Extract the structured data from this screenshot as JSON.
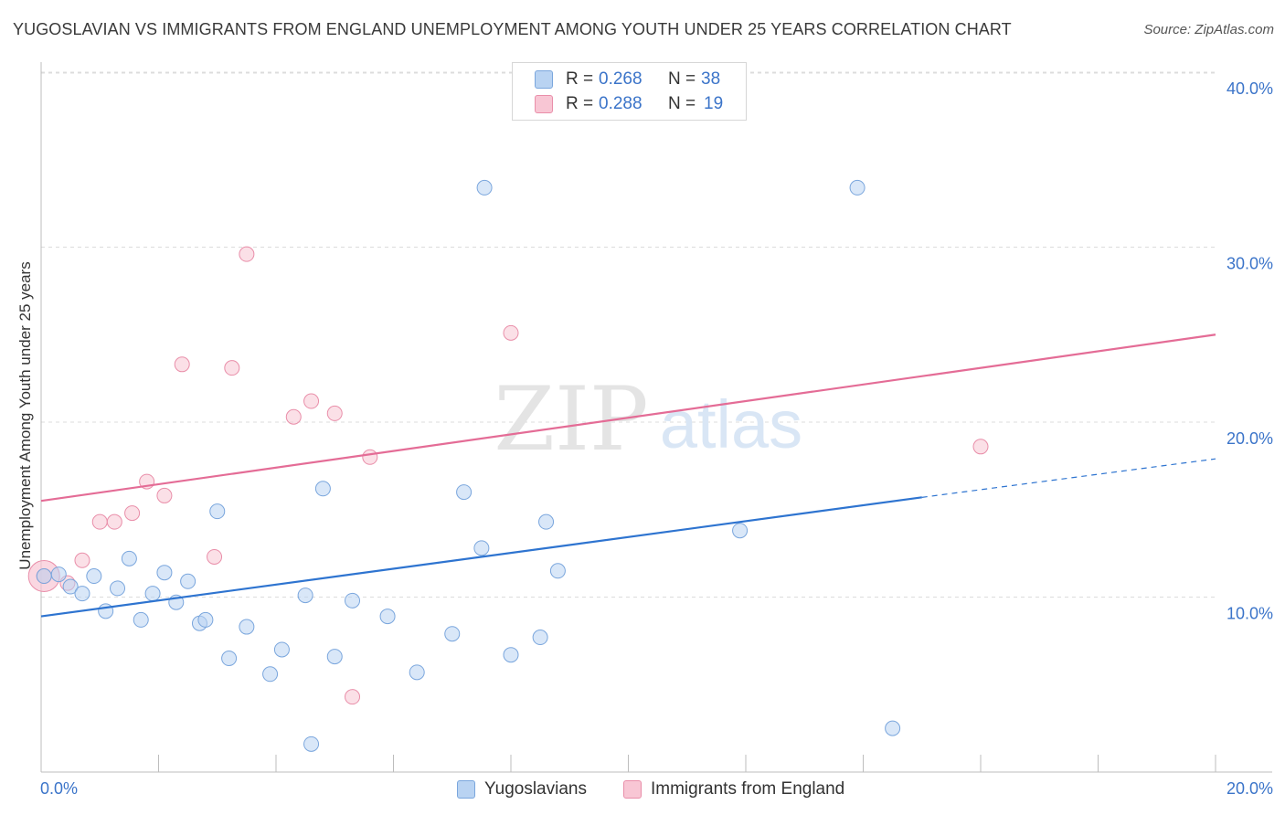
{
  "title": "YUGOSLAVIAN VS IMMIGRANTS FROM ENGLAND UNEMPLOYMENT AMONG YOUTH UNDER 25 YEARS CORRELATION CHART",
  "source": "Source: ZipAtlas.com",
  "watermark": {
    "zip": "ZIP",
    "atlas": "atlas"
  },
  "legend": {
    "rows": [
      {
        "r_label": "R =",
        "r_value": "0.268",
        "n_label": "N =",
        "n_value": "38",
        "color": "#a8c8f0"
      },
      {
        "r_label": "R =",
        "r_value": "0.288",
        "n_label": "N =",
        "n_value": "19",
        "color": "#f6b8c9"
      }
    ]
  },
  "colors": {
    "blue_fill": "#b9d3f2",
    "blue_stroke": "#7aa6dd",
    "blue_line": "#2e74d0",
    "pink_fill": "#f8c6d4",
    "pink_stroke": "#e98ea9",
    "pink_line": "#e46c96",
    "axis_text": "#3b74c9"
  },
  "chart_data": {
    "type": "scatter",
    "title": "YUGOSLAVIAN VS IMMIGRANTS FROM ENGLAND UNEMPLOYMENT AMONG YOUTH UNDER 25 YEARS CORRELATION CHART",
    "xlabel": "",
    "ylabel": "Unemployment Among Youth under 25 years",
    "xlim": [
      0,
      20
    ],
    "ylim": [
      0,
      42
    ],
    "x_tick_labels": [
      "0.0%",
      "20.0%"
    ],
    "y_ticks": [
      10,
      20,
      30,
      40
    ],
    "y_tick_labels": [
      "10.0%",
      "20.0%",
      "30.0%",
      "40.0%"
    ],
    "grid": true,
    "legend_position": "top-center",
    "series": [
      {
        "name": "Yugoslavians",
        "color": "#a8c8f0",
        "trend": {
          "x": [
            0,
            15.0
          ],
          "y": [
            8.9,
            15.7
          ],
          "dashed_extension_to": [
            20,
            17.9
          ]
        },
        "points": [
          [
            0.3,
            11.3
          ],
          [
            0.5,
            10.6
          ],
          [
            0.7,
            10.2
          ],
          [
            0.9,
            11.2
          ],
          [
            1.1,
            9.2
          ],
          [
            1.3,
            10.5
          ],
          [
            1.5,
            12.2
          ],
          [
            1.7,
            8.7
          ],
          [
            1.9,
            10.2
          ],
          [
            2.1,
            11.4
          ],
          [
            2.3,
            9.7
          ],
          [
            2.5,
            10.9
          ],
          [
            2.7,
            8.5
          ],
          [
            2.8,
            8.7
          ],
          [
            3.0,
            14.9
          ],
          [
            3.2,
            6.5
          ],
          [
            3.5,
            8.3
          ],
          [
            3.9,
            5.6
          ],
          [
            4.1,
            7.0
          ],
          [
            4.5,
            10.1
          ],
          [
            4.6,
            1.6
          ],
          [
            4.8,
            16.2
          ],
          [
            5.0,
            6.6
          ],
          [
            5.3,
            9.8
          ],
          [
            5.9,
            8.9
          ],
          [
            6.4,
            5.7
          ],
          [
            7.0,
            7.9
          ],
          [
            7.2,
            16.0
          ],
          [
            7.5,
            12.8
          ],
          [
            7.55,
            33.4
          ],
          [
            8.0,
            6.7
          ],
          [
            8.5,
            7.7
          ],
          [
            8.6,
            14.3
          ],
          [
            8.8,
            11.5
          ],
          [
            11.9,
            13.8
          ],
          [
            13.9,
            33.4
          ],
          [
            14.5,
            2.5
          ],
          [
            0.05,
            11.2
          ]
        ]
      },
      {
        "name": "Immigrants from England",
        "color": "#f6b8c9",
        "trend": {
          "x": [
            0,
            20
          ],
          "y": [
            15.5,
            25.0
          ]
        },
        "points": [
          [
            0.05,
            11.2
          ],
          [
            0.45,
            10.8
          ],
          [
            0.7,
            12.1
          ],
          [
            1.0,
            14.3
          ],
          [
            1.25,
            14.3
          ],
          [
            1.55,
            14.8
          ],
          [
            1.8,
            16.6
          ],
          [
            2.1,
            15.8
          ],
          [
            2.4,
            23.3
          ],
          [
            2.95,
            12.3
          ],
          [
            3.25,
            23.1
          ],
          [
            3.5,
            29.6
          ],
          [
            4.3,
            20.3
          ],
          [
            4.6,
            21.2
          ],
          [
            5.0,
            20.5
          ],
          [
            5.3,
            4.3
          ],
          [
            5.6,
            18.0
          ],
          [
            8.0,
            25.1
          ],
          [
            16.0,
            18.6
          ]
        ]
      }
    ]
  },
  "bottom_legend": [
    {
      "label": "Yugoslavians",
      "color": "#b9d3f2",
      "border": "#7aa6dd"
    },
    {
      "label": "Immigrants from England",
      "color": "#f8c6d4",
      "border": "#e98ea9"
    }
  ]
}
